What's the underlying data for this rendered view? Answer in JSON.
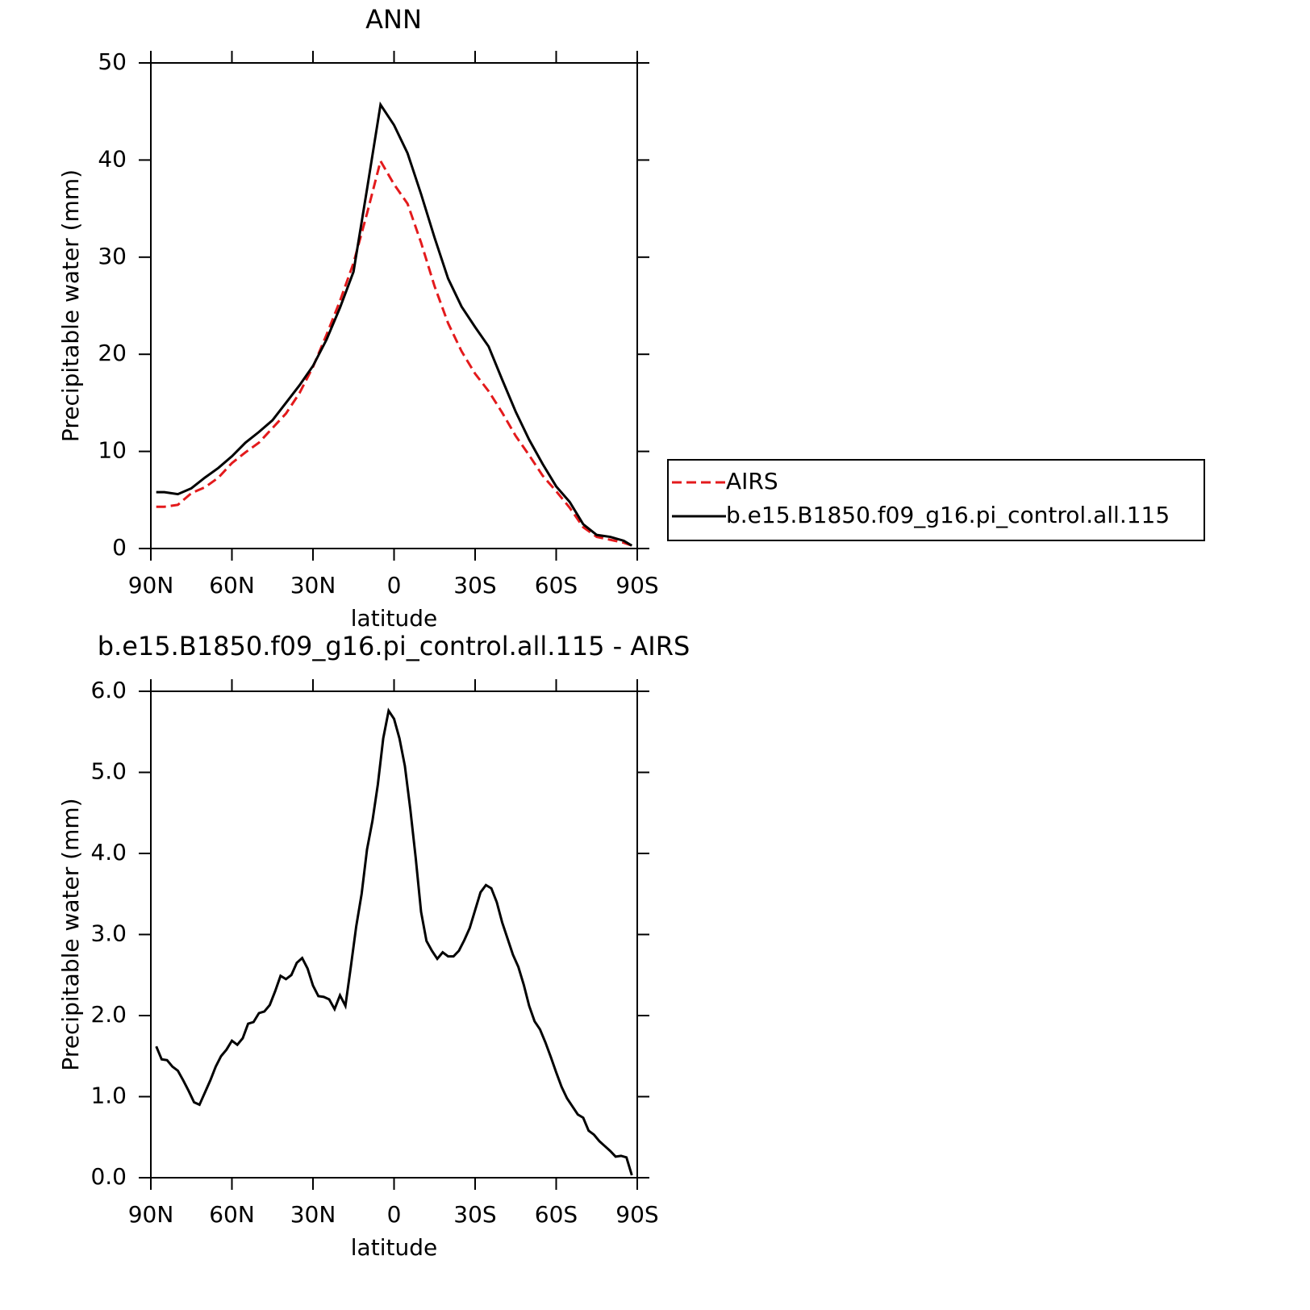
{
  "chart_data": [
    {
      "type": "line",
      "title": "ANN",
      "xlabel": "latitude",
      "ylabel": "Precipitable water (mm)",
      "xlim": [
        90,
        -90
      ],
      "xticks": [
        {
          "value": 90,
          "label": "90N"
        },
        {
          "value": 60,
          "label": "60N"
        },
        {
          "value": 30,
          "label": "30N"
        },
        0,
        {
          "value": -30,
          "label": "30S"
        },
        {
          "value": -60,
          "label": "60S"
        },
        {
          "value": -90,
          "label": "90S"
        }
      ],
      "ylim": [
        0,
        50
      ],
      "yticks": [
        0,
        10,
        20,
        30,
        40,
        50
      ],
      "legend": "right",
      "x": [
        88,
        85,
        80,
        75,
        70,
        65,
        60,
        55,
        50,
        45,
        40,
        35,
        30,
        25,
        20,
        15,
        10,
        5,
        0,
        -5,
        -10,
        -15,
        -20,
        -25,
        -30,
        -35,
        -40,
        -45,
        -50,
        -55,
        -60,
        -65,
        -70,
        -75,
        -80,
        -85,
        -88
      ],
      "series": [
        {
          "name": "AIRS",
          "color": "#e31a1c",
          "dash": true,
          "values": [
            4.3,
            4.3,
            4.5,
            5.7,
            6.3,
            7.3,
            8.8,
            9.9,
            10.9,
            12.4,
            13.9,
            16.0,
            18.7,
            22.0,
            25.5,
            29.4,
            34.5,
            39.9,
            37.5,
            35.5,
            31.5,
            27.0,
            23.2,
            20.3,
            18.0,
            16.2,
            14.0,
            11.6,
            9.6,
            7.5,
            5.9,
            4.2,
            2.2,
            1.2,
            0.9,
            0.6,
            0.3
          ]
        },
        {
          "name": "b.e15.B1850.f09_g16.pi_control.all.115",
          "color": "#000000",
          "dash": false,
          "values": [
            5.8,
            5.8,
            5.6,
            6.2,
            7.3,
            8.3,
            9.5,
            10.9,
            12.0,
            13.2,
            15.0,
            16.8,
            18.8,
            21.5,
            24.8,
            28.5,
            37.0,
            45.7,
            43.6,
            40.7,
            36.5,
            32.0,
            27.8,
            24.9,
            22.8,
            20.8,
            17.4,
            14.1,
            11.2,
            8.7,
            6.4,
            4.8,
            2.5,
            1.4,
            1.2,
            0.8,
            0.3
          ]
        }
      ]
    },
    {
      "type": "line",
      "title": "b.e15.B1850.f09_g16.pi_control.all.115 - AIRS",
      "xlabel": "latitude",
      "ylabel": "Precipitable water (mm)",
      "xlim": [
        90,
        -90
      ],
      "xticks": [
        {
          "value": 90,
          "label": "90N"
        },
        {
          "value": 60,
          "label": "60N"
        },
        {
          "value": 30,
          "label": "30N"
        },
        0,
        {
          "value": -30,
          "label": "30S"
        },
        {
          "value": -60,
          "label": "60S"
        },
        {
          "value": -90,
          "label": "90S"
        }
      ],
      "ylim": [
        0,
        6
      ],
      "yticks": [
        {
          "value": 0,
          "label": "0.0"
        },
        {
          "value": 1,
          "label": "1.0"
        },
        {
          "value": 2,
          "label": "2.0"
        },
        {
          "value": 3,
          "label": "3.0"
        },
        {
          "value": 4,
          "label": "4.0"
        },
        {
          "value": 5,
          "label": "5.0"
        },
        {
          "value": 6,
          "label": "6.0"
        }
      ],
      "x": [
        88,
        86,
        84,
        82,
        80,
        78,
        76,
        74,
        72,
        70,
        68,
        66,
        64,
        62,
        60,
        58,
        56,
        54,
        52,
        50,
        48,
        46,
        44,
        42,
        40,
        38,
        36,
        34,
        32,
        30,
        28,
        26,
        24,
        22,
        20,
        18,
        16,
        14,
        12,
        10,
        8,
        6,
        4,
        2,
        0,
        -2,
        -4,
        -6,
        -8,
        -10,
        -12,
        -14,
        -16,
        -18,
        -20,
        -22,
        -24,
        -26,
        -28,
        -30,
        -32,
        -34,
        -36,
        -38,
        -40,
        -42,
        -44,
        -46,
        -48,
        -50,
        -52,
        -54,
        -56,
        -58,
        -60,
        -62,
        -64,
        -66,
        -68,
        -70,
        -72,
        -74,
        -76,
        -78,
        -80,
        -82,
        -84,
        -86,
        -88
      ],
      "series": [
        {
          "color": "#000000",
          "dash": false,
          "values": [
            1.62,
            1.46,
            1.45,
            1.37,
            1.32,
            1.2,
            1.07,
            0.93,
            0.9,
            1.05,
            1.2,
            1.37,
            1.5,
            1.58,
            1.69,
            1.64,
            1.72,
            1.9,
            1.92,
            2.03,
            2.05,
            2.13,
            2.3,
            2.49,
            2.45,
            2.5,
            2.65,
            2.71,
            2.58,
            2.37,
            2.24,
            2.23,
            2.2,
            2.08,
            2.25,
            2.12,
            2.6,
            3.1,
            3.5,
            4.05,
            4.4,
            4.85,
            5.42,
            5.76,
            5.66,
            5.42,
            5.08,
            4.55,
            3.95,
            3.28,
            2.92,
            2.8,
            2.7,
            2.78,
            2.73,
            2.73,
            2.8,
            2.93,
            3.08,
            3.3,
            3.52,
            3.61,
            3.57,
            3.4,
            3.15,
            2.95,
            2.75,
            2.6,
            2.38,
            2.12,
            1.93,
            1.83,
            1.67,
            1.49,
            1.3,
            1.12,
            0.98,
            0.88,
            0.78,
            0.74,
            0.58,
            0.53,
            0.45,
            0.39,
            0.33,
            0.26,
            0.27,
            0.25,
            0.03
          ]
        }
      ]
    }
  ]
}
